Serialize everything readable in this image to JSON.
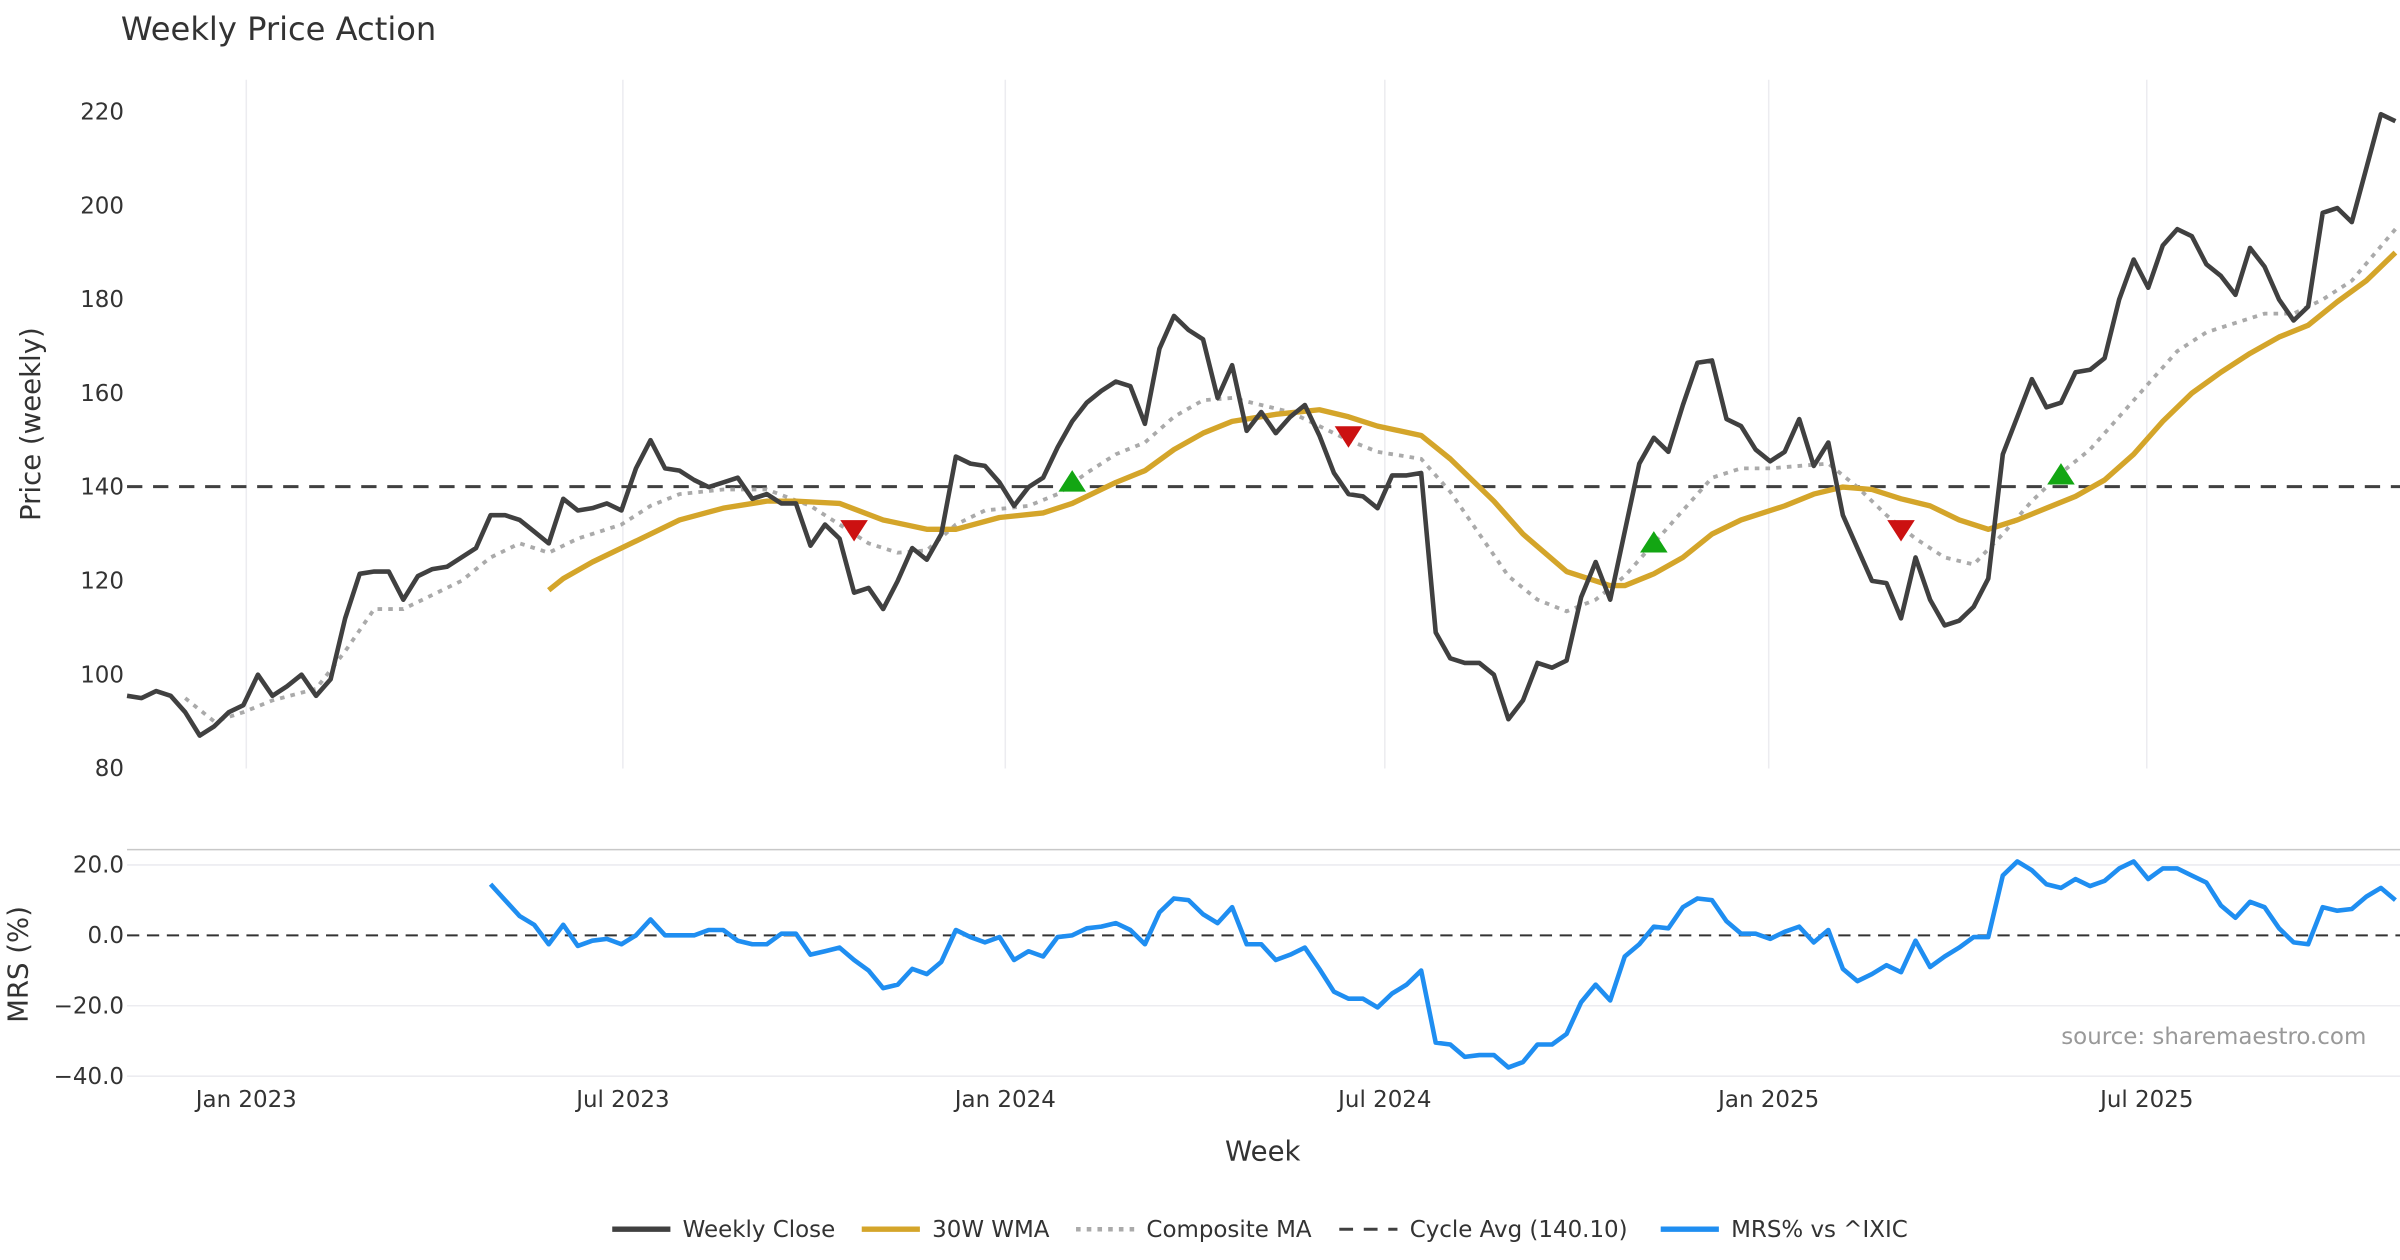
{
  "chart_data": [
    {
      "type": "line",
      "title": "Weekly Price Action",
      "ylabel": "Price (weekly)",
      "ylim": [
        80,
        225
      ],
      "yticks": [
        80,
        100,
        120,
        140,
        160,
        180,
        200,
        220
      ],
      "x_unit": "week index (0 = late Nov 2022)",
      "series": [
        {
          "name": "Weekly Close",
          "color": "#404040",
          "start": 0,
          "values": [
            95.5,
            95,
            96.5,
            95.5,
            92,
            87,
            89,
            92,
            93.5,
            100,
            95.5,
            97.5,
            100,
            95.5,
            99,
            112,
            121.5,
            122,
            122,
            116,
            121,
            122.5,
            123,
            125,
            127,
            134,
            134,
            133,
            130.5,
            128,
            137.5,
            135,
            135.5,
            136.5,
            135,
            144,
            150,
            144,
            143.5,
            141.5,
            140,
            141,
            142,
            137.5,
            138.5,
            136.5,
            136.5,
            127.5,
            132,
            129,
            117.5,
            118.5,
            114,
            120,
            127,
            124.5,
            130,
            146.5,
            145,
            144.5,
            141,
            136,
            140,
            142,
            148.5,
            154,
            158,
            160.5,
            162.5,
            161.5,
            153.5,
            169.5,
            176.5,
            173.5,
            171.5,
            159,
            166,
            152,
            156,
            151.5,
            155,
            157.5,
            151,
            143,
            138.5,
            138,
            135.5,
            142.5,
            142.5,
            143,
            109,
            103.5,
            102.5,
            102.5,
            100,
            90.5,
            94.5,
            102.5,
            101.5,
            103,
            116.5,
            124,
            116,
            130.5,
            145,
            150.5,
            147.5,
            157.5,
            166.5,
            167,
            154.5,
            153,
            148,
            145.5,
            147.5,
            154.5,
            144.5,
            149.5,
            134,
            127,
            120,
            119.5,
            112,
            125,
            116,
            110.5,
            111.5,
            114.5,
            120.5,
            147,
            155,
            163,
            157,
            158,
            164.5,
            165,
            167.5,
            180,
            188.5,
            182.5,
            191.5,
            195,
            193.5,
            187.5,
            185,
            181,
            191,
            187,
            180,
            175.5,
            178.5,
            198.5,
            199.5,
            196.5,
            208,
            219.5,
            218
          ]
        },
        {
          "name": "30W WMA",
          "color": "#d4a52a",
          "points": [
            [
              29,
              118
            ],
            [
              30,
              120.5
            ],
            [
              32,
              124
            ],
            [
              35,
              128.5
            ],
            [
              38,
              133
            ],
            [
              41,
              135.5
            ],
            [
              44,
              137
            ],
            [
              46,
              137
            ],
            [
              49,
              136.5
            ],
            [
              52,
              133
            ],
            [
              55,
              131
            ],
            [
              57,
              131
            ],
            [
              60,
              133.5
            ],
            [
              63,
              134.5
            ],
            [
              65,
              136.5
            ],
            [
              68,
              141
            ],
            [
              70,
              143.5
            ],
            [
              72,
              148
            ],
            [
              74,
              151.5
            ],
            [
              76,
              154
            ],
            [
              79,
              155.5
            ],
            [
              82,
              156.5
            ],
            [
              84,
              155
            ],
            [
              86,
              153
            ],
            [
              89,
              151
            ],
            [
              91,
              146
            ],
            [
              94,
              137
            ],
            [
              96,
              130
            ],
            [
              99,
              122
            ],
            [
              102,
              119
            ],
            [
              103,
              119
            ],
            [
              105,
              121.5
            ],
            [
              107,
              125
            ],
            [
              109,
              130
            ],
            [
              111,
              133
            ],
            [
              114,
              136
            ],
            [
              116,
              138.5
            ],
            [
              118,
              140
            ],
            [
              120,
              139.5
            ],
            [
              122,
              137.5
            ],
            [
              124,
              136
            ],
            [
              126,
              133
            ],
            [
              128,
              131
            ],
            [
              130,
              133
            ],
            [
              132,
              135.5
            ],
            [
              134,
              138
            ],
            [
              136,
              141.5
            ],
            [
              138,
              147
            ],
            [
              140,
              154
            ],
            [
              142,
              160
            ],
            [
              144,
              164.5
            ],
            [
              146,
              168.5
            ],
            [
              148,
              172
            ],
            [
              150,
              174.5
            ],
            [
              152,
              179.5
            ],
            [
              154,
              184
            ],
            [
              156,
              190
            ]
          ]
        },
        {
          "name": "Composite MA",
          "color": "#aaaaaa",
          "points": [
            [
              4,
              95
            ],
            [
              6,
              90
            ],
            [
              8,
              92
            ],
            [
              10,
              94.5
            ],
            [
              13,
              97
            ],
            [
              15,
              105
            ],
            [
              17,
              114
            ],
            [
              19,
              114
            ],
            [
              21,
              117
            ],
            [
              23,
              120
            ],
            [
              25,
              125
            ],
            [
              27,
              128
            ],
            [
              29,
              126
            ],
            [
              31,
              129
            ],
            [
              34,
              132
            ],
            [
              36,
              136
            ],
            [
              38,
              138.5
            ],
            [
              41,
              139.5
            ],
            [
              44,
              139.5
            ],
            [
              47,
              136
            ],
            [
              49,
              132
            ],
            [
              51,
              128
            ],
            [
              53,
              126
            ],
            [
              55,
              126.5
            ],
            [
              57,
              132
            ],
            [
              59,
              135
            ],
            [
              62,
              136
            ],
            [
              64,
              138.5
            ],
            [
              66,
              143
            ],
            [
              68,
              147
            ],
            [
              70,
              149.5
            ],
            [
              72,
              155
            ],
            [
              74,
              158.5
            ],
            [
              76,
              159
            ],
            [
              78,
              157.5
            ],
            [
              80,
              156
            ],
            [
              82,
              153
            ],
            [
              84,
              150
            ],
            [
              86,
              147.5
            ],
            [
              89,
              146
            ],
            [
              91,
              139
            ],
            [
              93,
              130
            ],
            [
              95,
              121
            ],
            [
              97,
              116
            ],
            [
              99,
              113.5
            ],
            [
              101,
              116
            ],
            [
              103,
              121
            ],
            [
              105,
              128
            ],
            [
              107,
              135
            ],
            [
              109,
              142
            ],
            [
              111,
              144
            ],
            [
              113,
              144
            ],
            [
              115,
              144.5
            ],
            [
              117,
              145
            ],
            [
              119,
              140
            ],
            [
              121,
              134
            ],
            [
              123,
              129
            ],
            [
              125,
              125
            ],
            [
              127,
              123.5
            ],
            [
              129,
              130
            ],
            [
              131,
              137
            ],
            [
              133,
              143
            ],
            [
              135,
              148
            ],
            [
              137,
              155
            ],
            [
              139,
              162
            ],
            [
              141,
              169
            ],
            [
              143,
              173
            ],
            [
              145,
              175
            ],
            [
              147,
              177
            ],
            [
              149,
              177
            ],
            [
              151,
              180
            ],
            [
              153,
              184
            ],
            [
              156,
              195
            ]
          ]
        },
        {
          "name": "Cycle Avg (140.10)",
          "color": "#404040",
          "value": 140.1
        }
      ],
      "signals": [
        {
          "type": "sell",
          "week": 50,
          "value": 131,
          "color": "#cc1111"
        },
        {
          "type": "buy",
          "week": 65,
          "value": 141,
          "color": "#13a613"
        },
        {
          "type": "sell",
          "week": 84,
          "value": 151,
          "color": "#cc1111"
        },
        {
          "type": "buy",
          "week": 105,
          "value": 128,
          "color": "#13a613"
        },
        {
          "type": "sell",
          "week": 122,
          "value": 131,
          "color": "#cc1111"
        },
        {
          "type": "buy",
          "week": 133,
          "value": 142.5,
          "color": "#13a613"
        }
      ]
    },
    {
      "type": "line",
      "ylabel": "MRS (%)",
      "xlabel": "Week",
      "ylim": [
        -40,
        20
      ],
      "yticks": [
        "20.0",
        "0.0",
        "−20.0",
        "−40.0"
      ],
      "ytick_values": [
        20,
        0,
        -20,
        -40
      ],
      "xticks": [
        {
          "label": "Jan 2023",
          "week": 8.2
        },
        {
          "label": "Jul 2023",
          "week": 34.1
        },
        {
          "label": "Jan 2024",
          "week": 60.4
        },
        {
          "label": "Jul 2024",
          "week": 86.5
        },
        {
          "label": "Jan 2025",
          "week": 112.9
        },
        {
          "label": "Jul 2025",
          "week": 138.9
        }
      ],
      "series": [
        {
          "name": "MRS% vs ^IXIC",
          "color": "#1f8ef1",
          "start": 25,
          "values": [
            14.5,
            10,
            5.5,
            3,
            -2.5,
            3,
            -3,
            -1.5,
            -1,
            -2.5,
            0,
            4.5,
            0,
            0,
            0,
            1.5,
            1.5,
            -1.5,
            -2.5,
            -2.5,
            0.5,
            0.5,
            -5.5,
            -4.5,
            -3.5,
            -7,
            -10,
            -15,
            -14,
            -9.5,
            -11,
            -7.5,
            1.5,
            -0.5,
            -2,
            -0.5,
            -7,
            -4.5,
            -6,
            -0.5,
            0,
            2,
            2.5,
            3.5,
            1.5,
            -2.5,
            6.5,
            10.5,
            10,
            6,
            3.5,
            8,
            -2.5,
            -2.5,
            -7,
            -5.5,
            -3.5,
            -9.5,
            -16,
            -18,
            -18,
            -20.5,
            -16.5,
            -14,
            -10,
            -30.5,
            -31,
            -34.5,
            -34,
            -34,
            -37.5,
            -36,
            -31,
            -31,
            -28,
            -19,
            -14,
            -18.5,
            -6,
            -2.5,
            2.5,
            2,
            8,
            10.5,
            10,
            4,
            0.5,
            0.5,
            -1,
            1,
            2.5,
            -2,
            1.5,
            -9.5,
            -13,
            -11,
            -8.5,
            -10.5,
            -1.5,
            -9,
            -6,
            -3.5,
            -0.5,
            -0.5,
            17,
            21,
            18.5,
            14.5,
            13.5,
            16,
            14,
            15.5,
            19,
            21,
            16,
            19,
            19,
            17,
            15,
            8.5,
            5,
            9.5,
            8,
            2,
            -2,
            -2.5,
            8,
            7,
            7.5,
            11,
            13.5,
            10
          ]
        }
      ],
      "zero_line": 0
    }
  ],
  "source": "source: sharemaestro.com",
  "legend": [
    "Weekly Close",
    "30W WMA",
    "Composite MA",
    "Cycle Avg (140.10)",
    "MRS% vs ^IXIC"
  ]
}
